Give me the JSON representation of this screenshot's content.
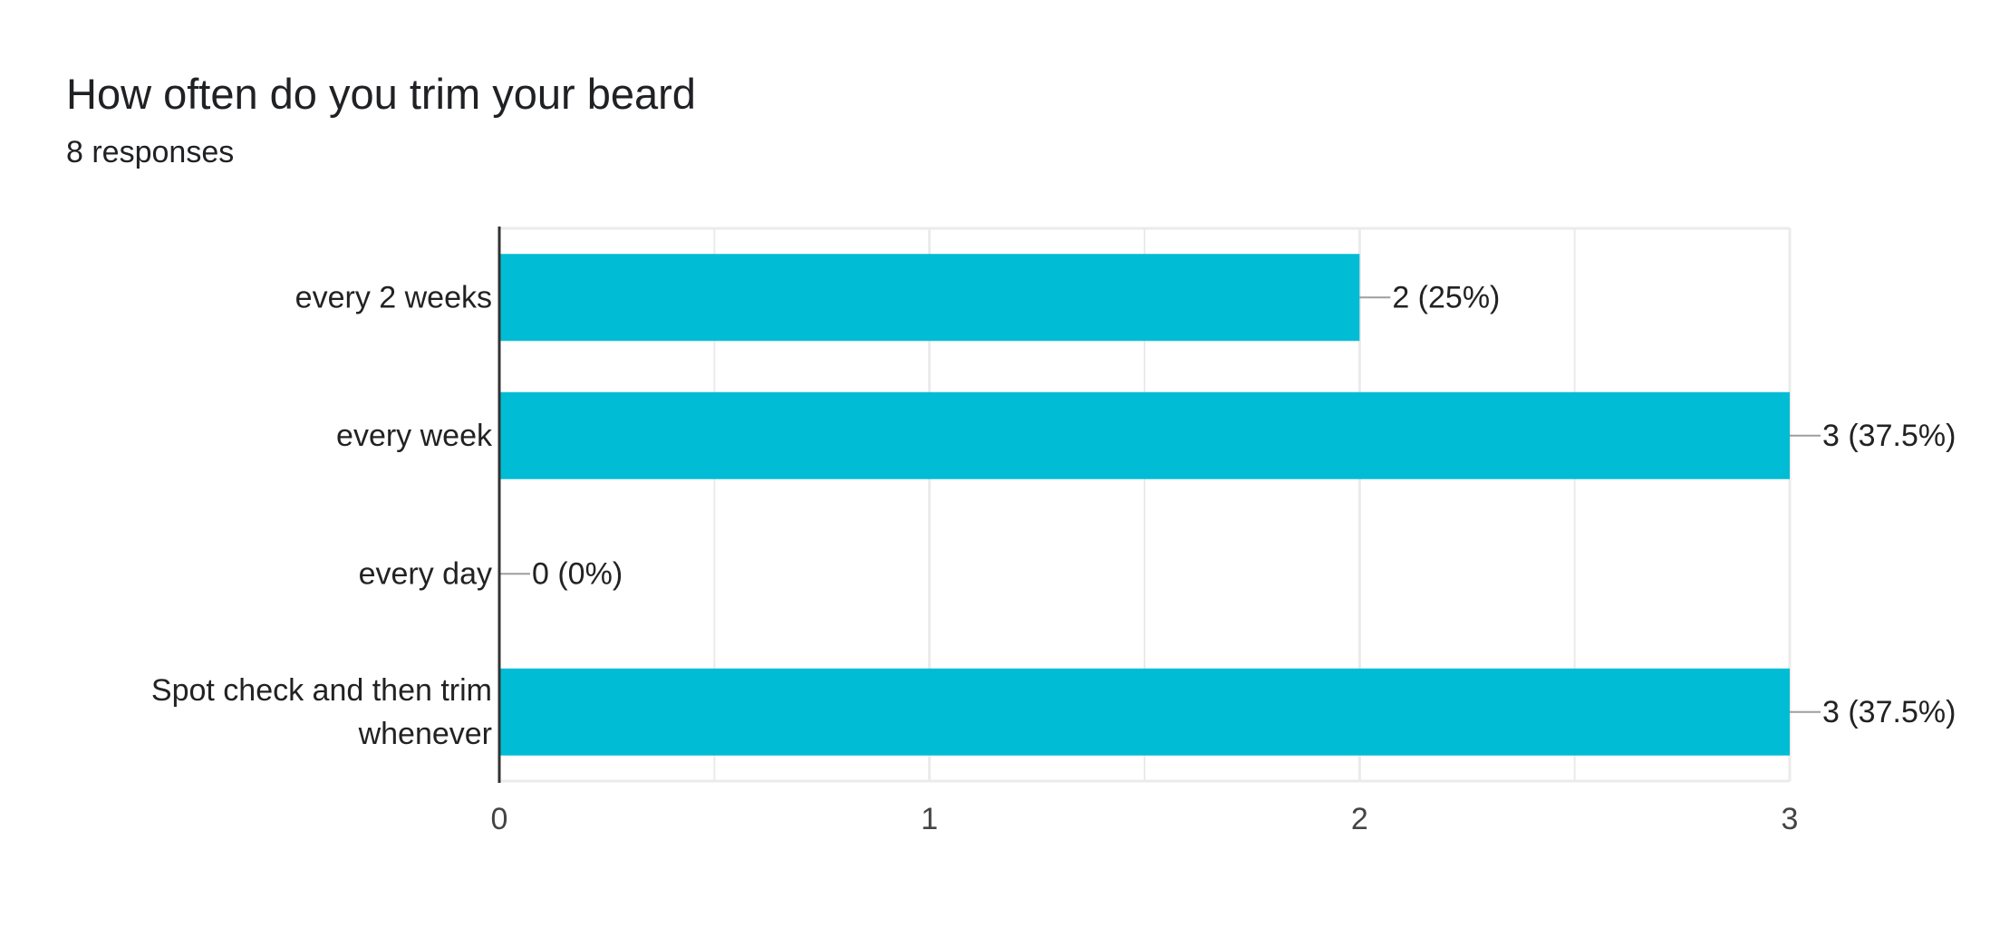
{
  "title": "How often do you trim your beard",
  "subtitle": "8 responses",
  "colors": {
    "bar": "#00bcd4",
    "grid": "#ebebeb",
    "axis": "#333333",
    "leader": "#9e9e9e",
    "text": "#222222",
    "tick": "#444444"
  },
  "chart_data": {
    "type": "bar",
    "orientation": "horizontal",
    "categories": [
      [
        "every 2 weeks"
      ],
      [
        "every week"
      ],
      [
        "every day"
      ],
      [
        "Spot check and then trim",
        "whenever"
      ]
    ],
    "values": [
      2,
      3,
      0,
      3
    ],
    "data_labels": [
      "2 (25%)",
      "3 (37.5%)",
      "0 (0%)",
      "3 (37.5%)"
    ],
    "xlim": [
      0,
      3
    ],
    "xticks": [
      0,
      1,
      2,
      3
    ],
    "xtick_labels": [
      "0",
      "1",
      "2",
      "3"
    ],
    "grid": true,
    "legend": "none"
  }
}
